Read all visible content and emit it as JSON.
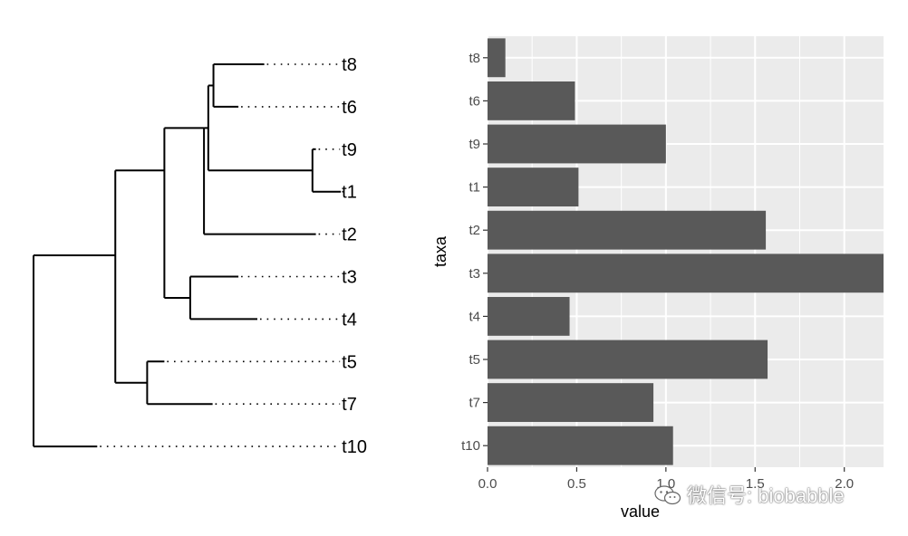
{
  "chart_data": [
    {
      "type": "tree",
      "tips": [
        "t8",
        "t6",
        "t9",
        "t1",
        "t2",
        "t3",
        "t4",
        "t5",
        "t7",
        "t10"
      ],
      "branches": [
        {
          "from": 0.0,
          "to": 0.95,
          "y": [
            5.5,
            5.5
          ]
        },
        {
          "from": 0.0,
          "to": 0.0,
          "y": [
            5.5,
            10
          ]
        },
        {
          "from": 0.0,
          "to": 0.74,
          "y": [
            10,
            10
          ],
          "tip": "t10"
        },
        {
          "from": 0.95,
          "to": 0.95,
          "y": [
            3.5,
            8.5
          ]
        },
        {
          "from": 0.95,
          "to": 1.52,
          "y": [
            3.5,
            3.5
          ]
        },
        {
          "from": 0.95,
          "to": 1.32,
          "y": [
            8.5,
            8.5
          ]
        },
        {
          "from": 1.32,
          "to": 1.32,
          "y": [
            8,
            9
          ]
        },
        {
          "from": 1.32,
          "to": 1.52,
          "y": [
            8,
            8
          ]
        },
        {
          "from": 1.52,
          "to": 1.52,
          "y": [
            8,
            8
          ],
          "tip": "t5"
        },
        {
          "from": 1.32,
          "to": 2.08,
          "y": [
            9,
            9
          ],
          "tip": "t7"
        },
        {
          "from": 1.52,
          "to": 1.52,
          "y": [
            2.5,
            6.5
          ]
        },
        {
          "from": 1.52,
          "to": 1.98,
          "y": [
            2.5,
            2.5
          ]
        },
        {
          "from": 1.52,
          "to": 1.82,
          "y": [
            6.5,
            6.5
          ]
        },
        {
          "from": 1.82,
          "to": 1.82,
          "y": [
            6,
            7
          ]
        },
        {
          "from": 1.82,
          "to": 2.38,
          "y": [
            6,
            6
          ],
          "tip": "t3"
        },
        {
          "from": 1.82,
          "to": 2.6,
          "y": [
            7,
            7
          ],
          "tip": "t4"
        },
        {
          "from": 1.98,
          "to": 1.98,
          "y": [
            2.5,
            5
          ]
        },
        {
          "from": 1.98,
          "to": 3.28,
          "y": [
            5,
            5
          ],
          "tip": "t2"
        },
        {
          "from": 1.98,
          "to": 2.03,
          "y": [
            2.5,
            2.5
          ]
        },
        {
          "from": 2.03,
          "to": 2.03,
          "y": [
            1.5,
            3.5
          ]
        },
        {
          "from": 2.03,
          "to": 2.09,
          "y": [
            1.5,
            1.5
          ]
        },
        {
          "from": 2.09,
          "to": 2.09,
          "y": [
            1,
            2
          ]
        },
        {
          "from": 2.09,
          "to": 2.68,
          "y": [
            1,
            1
          ],
          "tip": "t8"
        },
        {
          "from": 2.09,
          "to": 2.38,
          "y": [
            2,
            2
          ],
          "tip": "t6"
        },
        {
          "from": 2.03,
          "to": 3.24,
          "y": [
            3.5,
            3.5
          ]
        },
        {
          "from": 3.24,
          "to": 3.24,
          "y": [
            3,
            4
          ]
        },
        {
          "from": 3.24,
          "to": 3.28,
          "y": [
            3,
            3
          ],
          "tip": "t9"
        },
        {
          "from": 3.24,
          "to": 3.57,
          "y": [
            4,
            4
          ],
          "tip": "t1"
        }
      ],
      "tip_alignment": 3.57
    },
    {
      "type": "bar",
      "orientation": "horizontal",
      "categories": [
        "t8",
        "t6",
        "t9",
        "t1",
        "t2",
        "t3",
        "t4",
        "t5",
        "t7",
        "t10"
      ],
      "values": [
        0.1,
        0.49,
        1.0,
        0.51,
        1.56,
        2.22,
        0.46,
        1.57,
        0.93,
        1.04
      ],
      "xlabel": "value",
      "ylabel": "taxa",
      "xlim": [
        0.0,
        2.22
      ],
      "xticks": [
        "0.0",
        "0.5",
        "1.0",
        "1.5",
        "2.0"
      ],
      "xtick_values": [
        0.0,
        0.5,
        1.0,
        1.5,
        2.0
      ],
      "background": "#ebebeb",
      "bar_color": "#595959",
      "grid_color": "#ffffff"
    }
  ],
  "watermark": {
    "text": "微信号: biobabble",
    "icon": "wechat-icon"
  }
}
